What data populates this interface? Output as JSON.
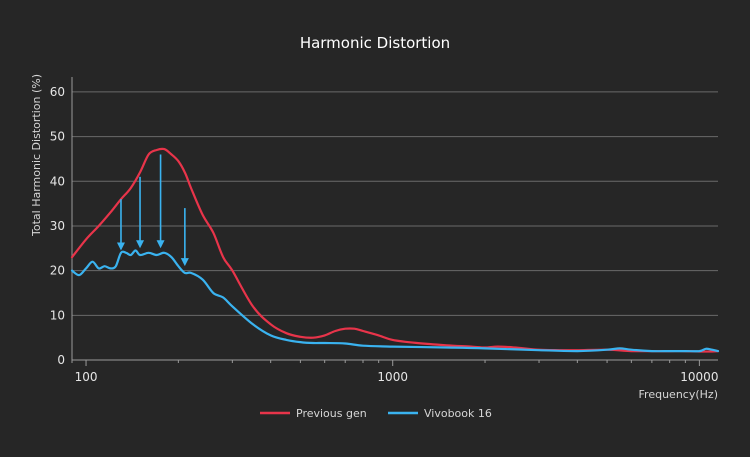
{
  "chart_data": {
    "type": "line",
    "title": "Harmonic Distortion",
    "xlabel": "Frequency(Hz)",
    "ylabel": "Total Harmonic Distortion (%)",
    "x_scale": "log",
    "xlim": [
      90,
      11500
    ],
    "ylim": [
      0,
      62
    ],
    "x_ticks": [
      100,
      1000,
      10000
    ],
    "x_tick_labels": [
      "100",
      "1000",
      "10000"
    ],
    "y_ticks": [
      0,
      10,
      20,
      30,
      40,
      50,
      60
    ],
    "y_tick_labels": [
      "0",
      "10",
      "20",
      "30",
      "40",
      "50",
      "60"
    ],
    "grid": true,
    "legend_position": "bottom-center",
    "colors": {
      "background": "#262626",
      "grid": "#6a6a6a",
      "text": "#e6e6e6",
      "previous_gen": "#e8344a",
      "vivobook": "#3ab3f0",
      "arrow": "#3ab3f0"
    },
    "series": [
      {
        "name": "Previous gen",
        "x": [
          90,
          100,
          110,
          120,
          130,
          140,
          150,
          160,
          170,
          180,
          190,
          200,
          210,
          220,
          240,
          260,
          280,
          300,
          350,
          400,
          450,
          500,
          550,
          600,
          650,
          700,
          750,
          800,
          900,
          1000,
          1200,
          1500,
          1800,
          2000,
          2200,
          2500,
          3000,
          3500,
          4000,
          5000,
          6000,
          7000,
          8000,
          9000,
          10000,
          11000,
          11500
        ],
        "y": [
          23,
          27,
          30,
          33,
          36,
          38.5,
          42,
          46,
          47,
          47.2,
          46,
          44.5,
          42,
          38.5,
          32.5,
          28.5,
          23,
          20,
          12,
          8,
          6,
          5.2,
          5,
          5.5,
          6.5,
          7,
          7,
          6.5,
          5.5,
          4.5,
          3.8,
          3.3,
          3,
          2.8,
          3,
          2.8,
          2.3,
          2.2,
          2.2,
          2.3,
          2,
          2,
          2,
          2,
          1.9,
          1.9,
          2
        ]
      },
      {
        "name": "Vivobook 16",
        "x": [
          90,
          95,
          100,
          105,
          110,
          115,
          120,
          125,
          130,
          135,
          140,
          145,
          150,
          160,
          170,
          180,
          190,
          200,
          210,
          220,
          240,
          260,
          280,
          300,
          350,
          400,
          450,
          500,
          550,
          600,
          700,
          800,
          1000,
          1500,
          2000,
          3000,
          4000,
          5000,
          5500,
          6000,
          7000,
          8000,
          9000,
          10000,
          10500,
          11000,
          11500
        ],
        "y": [
          20,
          19,
          20.5,
          22,
          20.5,
          21,
          20.5,
          21,
          24,
          24,
          23.5,
          24.5,
          23.5,
          24,
          23.5,
          24,
          23,
          21,
          19.5,
          19.5,
          18,
          15,
          14,
          12,
          8,
          5.5,
          4.5,
          4,
          3.8,
          3.8,
          3.7,
          3.2,
          3,
          2.8,
          2.6,
          2.2,
          2,
          2.3,
          2.6,
          2.3,
          2,
          2,
          2,
          2,
          2.5,
          2.3,
          2
        ]
      }
    ],
    "annotations": [
      {
        "type": "arrow",
        "x": 130,
        "y_from": 36,
        "y_to": 24.5
      },
      {
        "type": "arrow",
        "x": 150,
        "y_from": 41,
        "y_to": 25
      },
      {
        "type": "arrow",
        "x": 175,
        "y_from": 46,
        "y_to": 25
      },
      {
        "type": "arrow",
        "x": 210,
        "y_from": 34,
        "y_to": 21
      }
    ]
  }
}
